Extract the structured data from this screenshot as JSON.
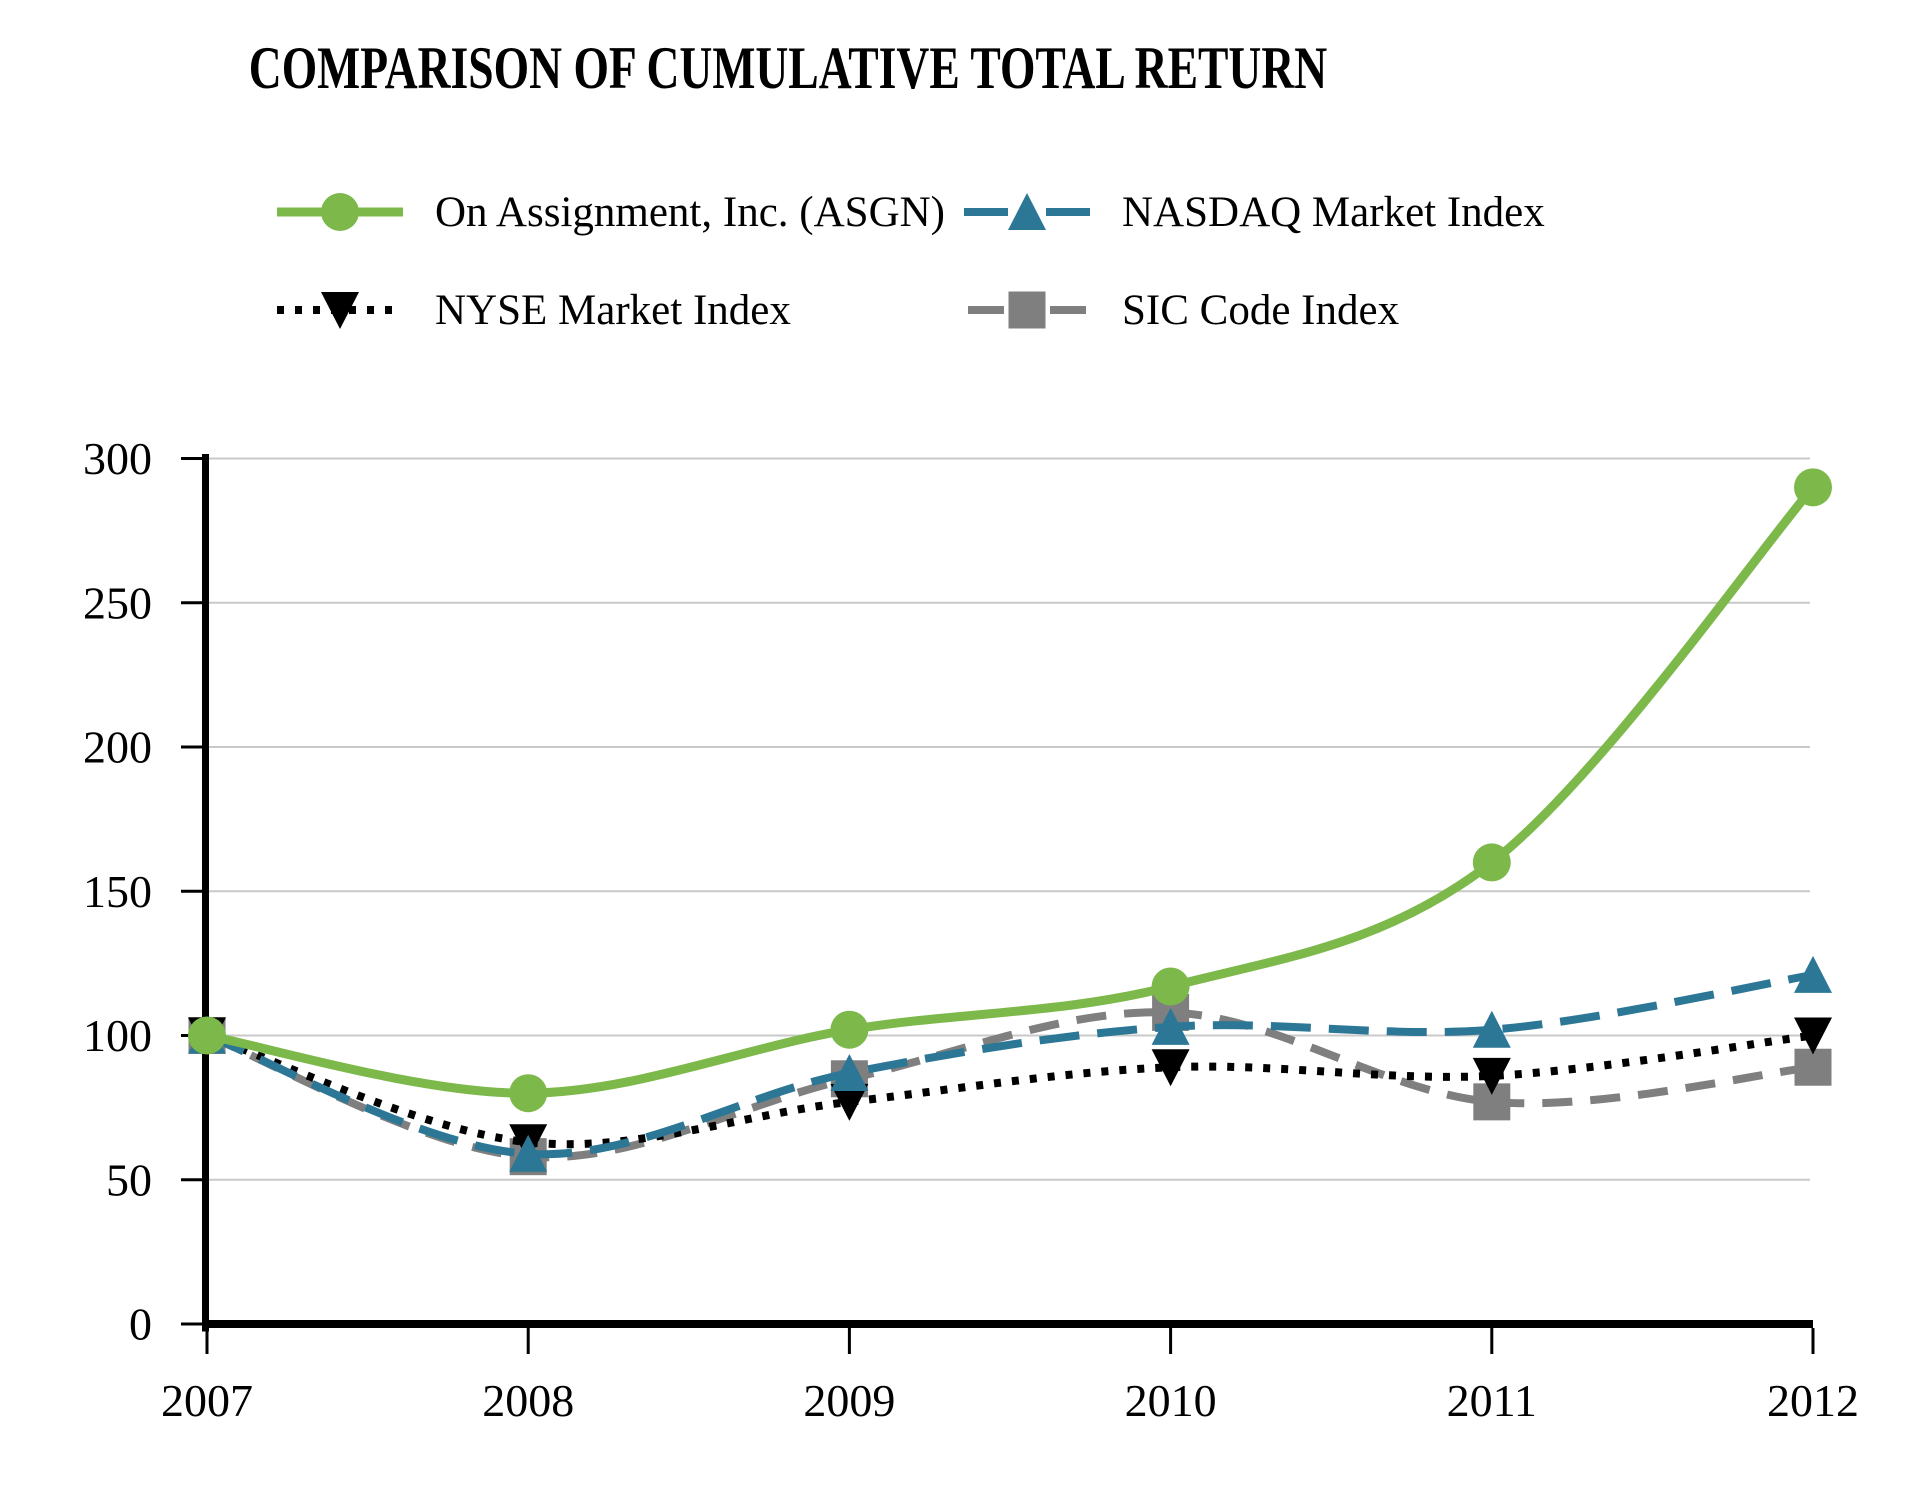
{
  "title": "COMPARISON OF CUMULATIVE TOTAL RETURN",
  "chart_data": {
    "type": "line",
    "title": "COMPARISON OF CUMULATIVE TOTAL RETURN",
    "x_categories": [
      "2007",
      "2008",
      "2009",
      "2010",
      "2011",
      "2012"
    ],
    "y_ticks": [
      0,
      50,
      100,
      150,
      200,
      250,
      300
    ],
    "ylim": [
      0,
      300
    ],
    "grid": "horizontal-gridlines",
    "legend_position": "top-two-rows",
    "gridline_color": "#C9C9C9",
    "axis_color": "#000000",
    "background_color": "#FFFFFF",
    "series": [
      {
        "id": "asgn",
        "name": "On Assignment, Inc. (ASGN)",
        "color": "#7CB94A",
        "marker": "circle",
        "line_style": "solid",
        "values": [
          100,
          80,
          102,
          117,
          160,
          290
        ]
      },
      {
        "id": "nasdaq",
        "name": "NASDAQ Market Index",
        "color": "#2D7796",
        "marker": "triangle-up",
        "line_style": "long-dash",
        "values": [
          100,
          59,
          87,
          103,
          102,
          121
        ]
      },
      {
        "id": "nyse",
        "name": "NYSE Market Index",
        "color": "#000000",
        "marker": "triangle-down",
        "line_style": "dotted",
        "values": [
          100,
          63,
          77,
          89,
          86,
          100
        ]
      },
      {
        "id": "sic",
        "name": "SIC Code Index",
        "color": "#7F7F7F",
        "marker": "square",
        "line_style": "dash",
        "values": [
          100,
          58,
          85,
          108,
          77,
          89
        ]
      }
    ]
  }
}
